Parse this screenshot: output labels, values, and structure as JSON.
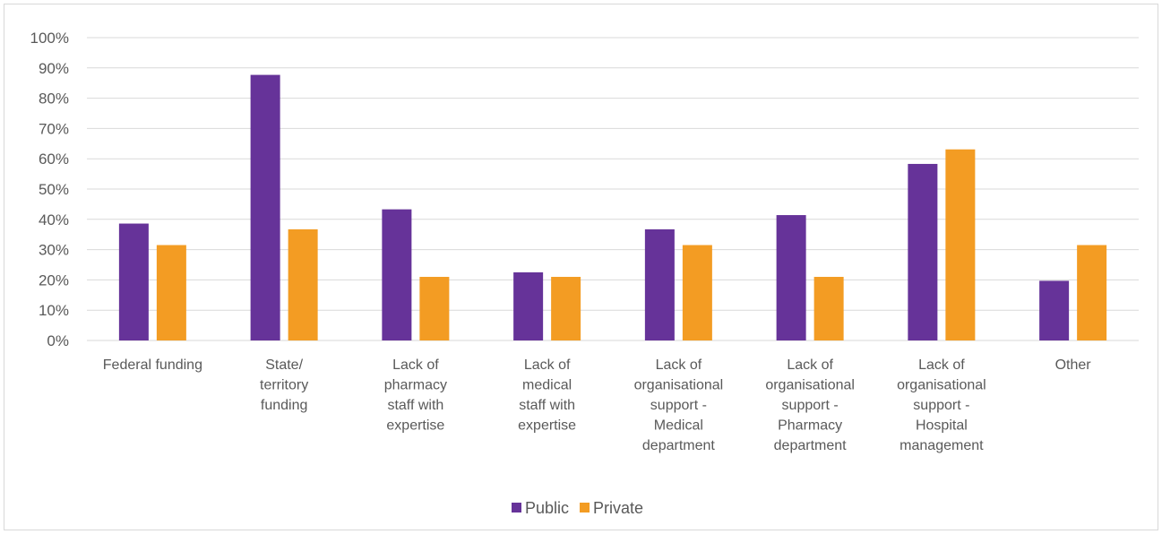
{
  "chart_data": {
    "type": "bar",
    "categories": [
      [
        "Federal funding"
      ],
      [
        "State/",
        "territory",
        "funding"
      ],
      [
        "Lack of",
        "pharmacy",
        "staff with",
        "expertise"
      ],
      [
        "Lack of",
        "medical",
        "staff with",
        "expertise"
      ],
      [
        "Lack of",
        "organisational",
        "support -",
        "Medical",
        "department"
      ],
      [
        "Lack of",
        "organisational",
        "support -",
        "Pharmacy",
        "department"
      ],
      [
        "Lack of",
        "organisational",
        "support -",
        "Hospital",
        "management"
      ],
      [
        "Other"
      ]
    ],
    "series": [
      {
        "name": "Public",
        "color": "#663399",
        "values": [
          38.6,
          87.7,
          43.3,
          22.5,
          36.7,
          41.4,
          58.3,
          19.7
        ]
      },
      {
        "name": "Private",
        "color": "#f39c23",
        "values": [
          31.5,
          36.7,
          21.0,
          21.0,
          31.5,
          21.0,
          63.1,
          31.5
        ]
      }
    ],
    "yticks": [
      "0%",
      "10%",
      "20%",
      "30%",
      "40%",
      "50%",
      "60%",
      "70%",
      "80%",
      "90%",
      "100%"
    ],
    "ylim": [
      0,
      100
    ],
    "grid": true,
    "legend_position": "bottom-center"
  }
}
